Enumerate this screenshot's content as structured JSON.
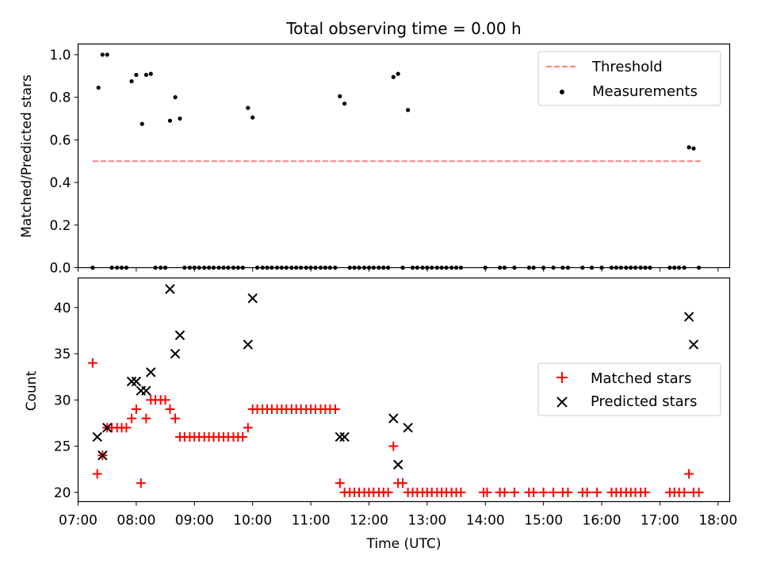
{
  "chart_data": [
    {
      "type": "scatter",
      "title": "Total observing time = 0.00 h",
      "xlabel": "",
      "ylabel": "Matched/Predicted stars",
      "xlim": [
        7.0,
        18.2
      ],
      "ylim": [
        0.0,
        1.05
      ],
      "y_ticks": [
        0.0,
        0.2,
        0.4,
        0.6,
        0.8,
        1.0
      ],
      "y_tick_labels": [
        "0.0",
        "0.2",
        "0.4",
        "0.6",
        "0.8",
        "1.0"
      ],
      "x_ticks_hours": [
        7,
        8,
        9,
        10,
        11,
        12,
        13,
        14,
        15,
        16,
        17,
        18
      ],
      "legend_position": "top-right",
      "threshold": {
        "name": "Threshold",
        "y": 0.5,
        "x_range": [
          7.25,
          17.7
        ],
        "color": "#ff7f7f"
      },
      "measurements": {
        "name": "Measurements",
        "color": "#000000",
        "points": [
          [
            7.35,
            0.845
          ],
          [
            7.42,
            1.0
          ],
          [
            7.5,
            1.0
          ],
          [
            7.92,
            0.875
          ],
          [
            8.0,
            0.905
          ],
          [
            8.1,
            0.675
          ],
          [
            8.17,
            0.905
          ],
          [
            8.25,
            0.91
          ],
          [
            8.58,
            0.69
          ],
          [
            8.67,
            0.8
          ],
          [
            8.75,
            0.7
          ],
          [
            9.92,
            0.75
          ],
          [
            10.0,
            0.705
          ],
          [
            11.5,
            0.805
          ],
          [
            11.58,
            0.77
          ],
          [
            12.42,
            0.895
          ],
          [
            12.5,
            0.91
          ],
          [
            12.67,
            0.74
          ],
          [
            17.5,
            0.565
          ],
          [
            17.58,
            0.56
          ]
        ],
        "zero_x": [
          7.25,
          7.58,
          7.67,
          7.75,
          7.83,
          8.33,
          8.42,
          8.5,
          8.83,
          8.92,
          9.0,
          9.08,
          9.17,
          9.25,
          9.33,
          9.42,
          9.5,
          9.58,
          9.67,
          9.75,
          9.83,
          10.08,
          10.17,
          10.25,
          10.33,
          10.42,
          10.5,
          10.58,
          10.67,
          10.75,
          10.83,
          10.92,
          11.0,
          11.08,
          11.17,
          11.25,
          11.33,
          11.42,
          11.67,
          11.75,
          11.83,
          11.92,
          12.0,
          12.08,
          12.17,
          12.25,
          12.33,
          12.58,
          12.75,
          12.83,
          12.92,
          13.0,
          13.08,
          13.17,
          13.25,
          13.33,
          13.42,
          13.5,
          13.58,
          14.0,
          14.25,
          14.33,
          14.5,
          14.75,
          14.83,
          15.0,
          15.17,
          15.33,
          15.42,
          15.67,
          15.83,
          16.0,
          16.17,
          16.25,
          16.33,
          16.42,
          16.5,
          16.58,
          16.67,
          16.75,
          16.83,
          17.17,
          17.25,
          17.33,
          17.42,
          17.67
        ]
      }
    },
    {
      "type": "scatter",
      "title": "",
      "xlabel": "Time (UTC)",
      "ylabel": "Count",
      "xlim": [
        7.0,
        18.2
      ],
      "ylim": [
        19.0,
        43.2
      ],
      "y_ticks": [
        20,
        25,
        30,
        35,
        40
      ],
      "y_tick_labels": [
        "20",
        "25",
        "30",
        "35",
        "40"
      ],
      "x_ticks_hours": [
        7,
        8,
        9,
        10,
        11,
        12,
        13,
        14,
        15,
        16,
        17,
        18
      ],
      "x_tick_labels": [
        "07:00",
        "08:00",
        "09:00",
        "10:00",
        "11:00",
        "12:00",
        "13:00",
        "14:00",
        "15:00",
        "16:00",
        "17:00",
        "18:00"
      ],
      "legend_position": "center-right",
      "matched": {
        "name": "Matched stars",
        "color": "#ff0000",
        "points": [
          [
            7.25,
            34
          ],
          [
            7.33,
            22
          ],
          [
            7.42,
            24
          ],
          [
            7.5,
            27
          ],
          [
            7.58,
            27
          ],
          [
            7.67,
            27
          ],
          [
            7.75,
            27
          ],
          [
            7.83,
            27
          ],
          [
            7.92,
            28
          ],
          [
            8.0,
            29
          ],
          [
            8.08,
            21
          ],
          [
            8.17,
            28
          ],
          [
            8.25,
            30
          ],
          [
            8.33,
            30
          ],
          [
            8.42,
            30
          ],
          [
            8.5,
            30
          ],
          [
            8.58,
            29
          ],
          [
            8.67,
            28
          ],
          [
            8.75,
            26
          ],
          [
            8.83,
            26
          ],
          [
            8.92,
            26
          ],
          [
            9.0,
            26
          ],
          [
            9.08,
            26
          ],
          [
            9.17,
            26
          ],
          [
            9.25,
            26
          ],
          [
            9.33,
            26
          ],
          [
            9.42,
            26
          ],
          [
            9.5,
            26
          ],
          [
            9.58,
            26
          ],
          [
            9.67,
            26
          ],
          [
            9.75,
            26
          ],
          [
            9.83,
            26
          ],
          [
            9.92,
            27
          ],
          [
            10.0,
            29
          ],
          [
            10.08,
            29
          ],
          [
            10.17,
            29
          ],
          [
            10.25,
            29
          ],
          [
            10.33,
            29
          ],
          [
            10.42,
            29
          ],
          [
            10.5,
            29
          ],
          [
            10.58,
            29
          ],
          [
            10.67,
            29
          ],
          [
            10.75,
            29
          ],
          [
            10.83,
            29
          ],
          [
            10.92,
            29
          ],
          [
            11.0,
            29
          ],
          [
            11.08,
            29
          ],
          [
            11.17,
            29
          ],
          [
            11.25,
            29
          ],
          [
            11.33,
            29
          ],
          [
            11.42,
            29
          ],
          [
            11.5,
            21
          ],
          [
            11.58,
            20
          ],
          [
            11.67,
            20
          ],
          [
            11.75,
            20
          ],
          [
            11.83,
            20
          ],
          [
            11.92,
            20
          ],
          [
            12.0,
            20
          ],
          [
            12.08,
            20
          ],
          [
            12.17,
            20
          ],
          [
            12.25,
            20
          ],
          [
            12.33,
            20
          ],
          [
            12.42,
            25
          ],
          [
            12.5,
            21
          ],
          [
            12.58,
            21
          ],
          [
            12.67,
            20
          ],
          [
            12.75,
            20
          ],
          [
            12.83,
            20
          ],
          [
            12.92,
            20
          ],
          [
            13.0,
            20
          ],
          [
            13.08,
            20
          ],
          [
            13.17,
            20
          ],
          [
            13.25,
            20
          ],
          [
            13.33,
            20
          ],
          [
            13.42,
            20
          ],
          [
            13.5,
            20
          ],
          [
            13.58,
            20
          ],
          [
            13.97,
            20
          ],
          [
            14.03,
            20
          ],
          [
            14.25,
            20
          ],
          [
            14.33,
            20
          ],
          [
            14.5,
            20
          ],
          [
            14.75,
            20
          ],
          [
            14.83,
            20
          ],
          [
            15.0,
            20
          ],
          [
            15.17,
            20
          ],
          [
            15.33,
            20
          ],
          [
            15.42,
            20
          ],
          [
            15.67,
            20
          ],
          [
            15.75,
            20
          ],
          [
            15.92,
            20
          ],
          [
            16.17,
            20
          ],
          [
            16.25,
            20
          ],
          [
            16.33,
            20
          ],
          [
            16.42,
            20
          ],
          [
            16.5,
            20
          ],
          [
            16.58,
            20
          ],
          [
            16.67,
            20
          ],
          [
            16.75,
            20
          ],
          [
            17.17,
            20
          ],
          [
            17.25,
            20
          ],
          [
            17.33,
            20
          ],
          [
            17.42,
            20
          ],
          [
            17.5,
            22
          ],
          [
            17.58,
            20
          ],
          [
            17.67,
            20
          ]
        ]
      },
      "predicted": {
        "name": "Predicted stars",
        "color": "#000000",
        "points": [
          [
            7.33,
            26
          ],
          [
            7.42,
            24
          ],
          [
            7.5,
            27
          ],
          [
            7.92,
            32
          ],
          [
            8.0,
            32
          ],
          [
            8.08,
            31
          ],
          [
            8.17,
            31
          ],
          [
            8.25,
            33
          ],
          [
            8.58,
            42
          ],
          [
            8.67,
            35
          ],
          [
            8.75,
            37
          ],
          [
            9.92,
            36
          ],
          [
            10.0,
            41
          ],
          [
            11.5,
            26
          ],
          [
            11.58,
            26
          ],
          [
            12.42,
            28
          ],
          [
            12.5,
            23
          ],
          [
            12.67,
            27
          ],
          [
            17.5,
            39
          ],
          [
            17.58,
            36
          ]
        ]
      }
    }
  ]
}
